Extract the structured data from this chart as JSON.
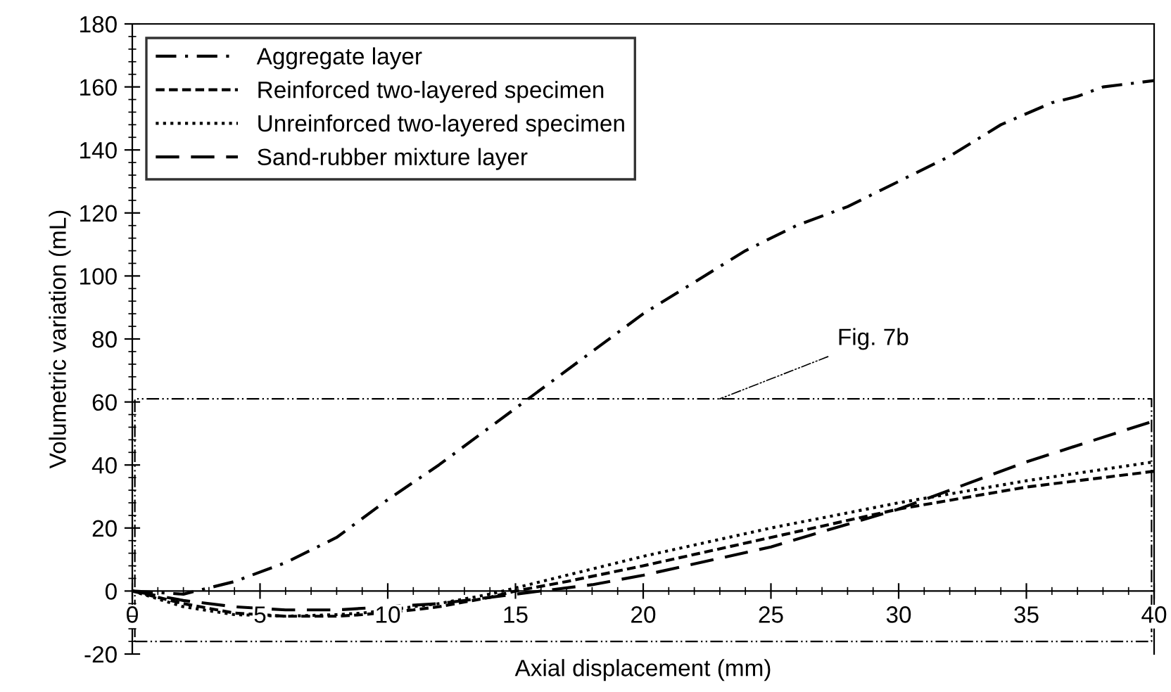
{
  "chart_data": {
    "type": "line",
    "xlabel": "Axial displacement (mm)",
    "ylabel": "Volumetric variation (mL)",
    "xlim": [
      0,
      40
    ],
    "ylim": [
      -20,
      180
    ],
    "xticks": [
      0,
      5,
      10,
      15,
      20,
      25,
      30,
      35,
      40
    ],
    "yticks": [
      -20,
      0,
      20,
      40,
      60,
      80,
      100,
      120,
      140,
      160,
      180
    ],
    "grid": false,
    "legend": "top left",
    "marker": "none",
    "annotations": [
      "Fig. 7b"
    ],
    "series": [
      {
        "name": "Aggregate layer",
        "color": "#000000",
        "line_style": "dashdot",
        "x": [
          0,
          2,
          4,
          6,
          8,
          10,
          12,
          14,
          15,
          16,
          18,
          20,
          22,
          24,
          26,
          28,
          30,
          32,
          34,
          36,
          37,
          38,
          40
        ],
        "values": [
          0,
          -1,
          3,
          9,
          17,
          29,
          40,
          52,
          58,
          64,
          76,
          88,
          98,
          108,
          116,
          122,
          130,
          138,
          148,
          155,
          157,
          160,
          162
        ]
      },
      {
        "name": "Reinforced two-layered specimen",
        "color": "#000000",
        "line_style": "dashed",
        "x": [
          0,
          2,
          4,
          6,
          8,
          9,
          11,
          12,
          14,
          15,
          17,
          20,
          25,
          30,
          35,
          40
        ],
        "values": [
          0,
          -4,
          -7,
          -8,
          -8,
          -7.5,
          -6,
          -5,
          -2,
          0,
          3,
          8,
          17,
          26,
          33,
          38
        ]
      },
      {
        "name": "Unreinforced two-layered specimen",
        "color": "#000000",
        "line_style": "dotted",
        "x": [
          0,
          2,
          4,
          6,
          8,
          9,
          11,
          12,
          14,
          15,
          17,
          20,
          25,
          30,
          35,
          40
        ],
        "values": [
          0,
          -5,
          -7.5,
          -8,
          -7.5,
          -7,
          -5,
          -4,
          -1,
          1,
          5,
          11,
          20,
          28,
          35,
          41
        ]
      },
      {
        "name": "Sand-rubber mixture layer",
        "color": "#000000",
        "line_style": "longdash",
        "x": [
          0,
          2,
          4,
          6,
          8,
          10,
          12,
          14,
          16,
          18,
          20,
          25,
          30,
          35,
          40
        ],
        "values": [
          0,
          -3,
          -5,
          -6,
          -6,
          -5,
          -4,
          -2,
          0,
          2,
          5,
          14,
          26,
          41,
          54
        ]
      }
    ]
  }
}
